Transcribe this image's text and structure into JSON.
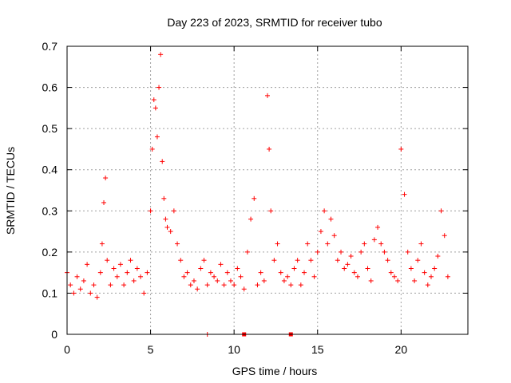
{
  "chart_data": {
    "type": "scatter",
    "title": "Day 223 of 2023, SRMTID for receiver tubo",
    "xlabel": "GPS time / hours",
    "ylabel": "SRMTID / TECUs",
    "xlim": [
      0,
      24
    ],
    "ylim": [
      0,
      0.7
    ],
    "xticks": [
      0,
      5,
      10,
      15,
      20
    ],
    "xtick_labels": [
      "0",
      "5",
      "10",
      "15",
      "20"
    ],
    "yticks": [
      0,
      0.1,
      0.2,
      0.3,
      0.4,
      0.5,
      0.6,
      0.7
    ],
    "ytick_labels": [
      "0",
      "0.1",
      "0.2",
      "0.3",
      "0.4",
      "0.5",
      "0.6",
      "0.7"
    ],
    "grid": true,
    "marker": "+",
    "color": "#ff0000",
    "baseline_markers": [
      {
        "x": 8.4,
        "y": 0,
        "marker": "+"
      },
      {
        "x": 10.6,
        "y": 0,
        "marker": "square"
      },
      {
        "x": 13.4,
        "y": 0,
        "marker": "square"
      }
    ],
    "series": [
      {
        "name": "SRMTID",
        "x": [
          0.0,
          0.2,
          0.4,
          0.6,
          0.8,
          1.0,
          1.2,
          1.4,
          1.6,
          1.8,
          2.0,
          2.1,
          2.2,
          2.3,
          2.4,
          2.6,
          2.8,
          3.0,
          3.2,
          3.4,
          3.6,
          3.8,
          4.0,
          4.2,
          4.4,
          4.6,
          4.8,
          5.0,
          5.1,
          5.2,
          5.3,
          5.4,
          5.5,
          5.6,
          5.7,
          5.8,
          5.9,
          6.0,
          6.2,
          6.4,
          6.6,
          6.8,
          7.0,
          7.2,
          7.4,
          7.6,
          7.8,
          8.0,
          8.2,
          8.4,
          8.6,
          8.8,
          9.0,
          9.2,
          9.4,
          9.6,
          9.8,
          10.0,
          10.2,
          10.4,
          10.6,
          10.8,
          11.0,
          11.2,
          11.4,
          11.6,
          11.8,
          12.0,
          12.1,
          12.2,
          12.4,
          12.6,
          12.8,
          13.0,
          13.2,
          13.4,
          13.6,
          13.8,
          14.0,
          14.2,
          14.4,
          14.6,
          14.8,
          15.0,
          15.2,
          15.4,
          15.6,
          15.8,
          16.0,
          16.2,
          16.4,
          16.6,
          16.8,
          17.0,
          17.2,
          17.4,
          17.6,
          17.8,
          18.0,
          18.2,
          18.4,
          18.6,
          18.8,
          19.0,
          19.2,
          19.4,
          19.6,
          19.8,
          20.0,
          20.2,
          20.4,
          20.6,
          20.8,
          21.0,
          21.2,
          21.4,
          21.6,
          21.8,
          22.0,
          22.2,
          22.4,
          22.6,
          22.8
        ],
        "y": [
          0.15,
          0.12,
          0.1,
          0.14,
          0.11,
          0.13,
          0.17,
          0.1,
          0.12,
          0.09,
          0.15,
          0.22,
          0.32,
          0.38,
          0.18,
          0.12,
          0.16,
          0.14,
          0.17,
          0.12,
          0.15,
          0.18,
          0.13,
          0.16,
          0.14,
          0.1,
          0.15,
          0.3,
          0.45,
          0.57,
          0.55,
          0.48,
          0.6,
          0.68,
          0.42,
          0.33,
          0.28,
          0.26,
          0.25,
          0.3,
          0.22,
          0.18,
          0.14,
          0.15,
          0.12,
          0.13,
          0.11,
          0.16,
          0.18,
          0.12,
          0.15,
          0.14,
          0.13,
          0.17,
          0.12,
          0.15,
          0.13,
          0.12,
          0.16,
          0.14,
          0.11,
          0.2,
          0.28,
          0.33,
          0.12,
          0.15,
          0.13,
          0.58,
          0.45,
          0.3,
          0.18,
          0.22,
          0.15,
          0.13,
          0.14,
          0.12,
          0.16,
          0.18,
          0.12,
          0.15,
          0.22,
          0.18,
          0.14,
          0.2,
          0.25,
          0.3,
          0.22,
          0.28,
          0.24,
          0.18,
          0.2,
          0.16,
          0.17,
          0.19,
          0.15,
          0.14,
          0.2,
          0.22,
          0.16,
          0.13,
          0.23,
          0.26,
          0.22,
          0.2,
          0.18,
          0.15,
          0.14,
          0.13,
          0.45,
          0.34,
          0.2,
          0.16,
          0.13,
          0.18,
          0.22,
          0.15,
          0.12,
          0.14,
          0.16,
          0.19,
          0.3,
          0.24,
          0.14
        ]
      }
    ]
  }
}
